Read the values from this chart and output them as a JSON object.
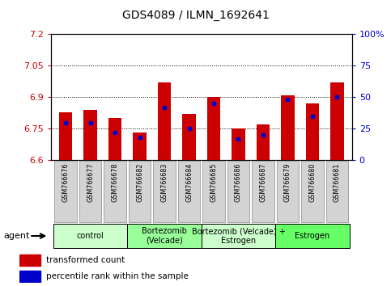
{
  "title": "GDS4089 / ILMN_1692641",
  "samples": [
    "GSM766676",
    "GSM766677",
    "GSM766678",
    "GSM766682",
    "GSM766683",
    "GSM766684",
    "GSM766685",
    "GSM766686",
    "GSM766687",
    "GSM766679",
    "GSM766680",
    "GSM766681"
  ],
  "transformed_count": [
    6.83,
    6.84,
    6.8,
    6.73,
    6.97,
    6.82,
    6.9,
    6.75,
    6.77,
    6.91,
    6.87,
    6.97
  ],
  "percentile_rank": [
    30,
    30,
    22,
    18,
    42,
    25,
    45,
    17,
    20,
    48,
    35,
    50
  ],
  "ymin": 6.6,
  "ymax": 7.2,
  "yticks": [
    6.6,
    6.75,
    6.9,
    7.05,
    7.2
  ],
  "right_yticks": [
    0,
    25,
    50,
    75,
    100
  ],
  "right_yticklabels": [
    "0",
    "25",
    "50",
    "75",
    "100%"
  ],
  "bar_color": "#cc0000",
  "percentile_color": "#0000cc",
  "grid_color": "#000000",
  "agent_groups": [
    {
      "label": "control",
      "start": 0,
      "end": 3,
      "color": "#ccffcc"
    },
    {
      "label": "Bortezomib\n(Velcade)",
      "start": 3,
      "end": 6,
      "color": "#99ff99"
    },
    {
      "label": "Bortezomib (Velcade) +\nEstrogen",
      "start": 6,
      "end": 9,
      "color": "#ccffcc"
    },
    {
      "label": "Estrogen",
      "start": 9,
      "end": 12,
      "color": "#66ff66"
    }
  ],
  "agent_label": "agent",
  "legend_items": [
    {
      "label": "transformed count",
      "color": "#cc0000"
    },
    {
      "label": "percentile rank within the sample",
      "color": "#0000cc"
    }
  ],
  "bar_width": 0.55,
  "tick_label_color": "#cc0000",
  "right_tick_color": "#0000cc",
  "bg_color": "#ffffff",
  "xlabel_gray": "#c0c0c0"
}
